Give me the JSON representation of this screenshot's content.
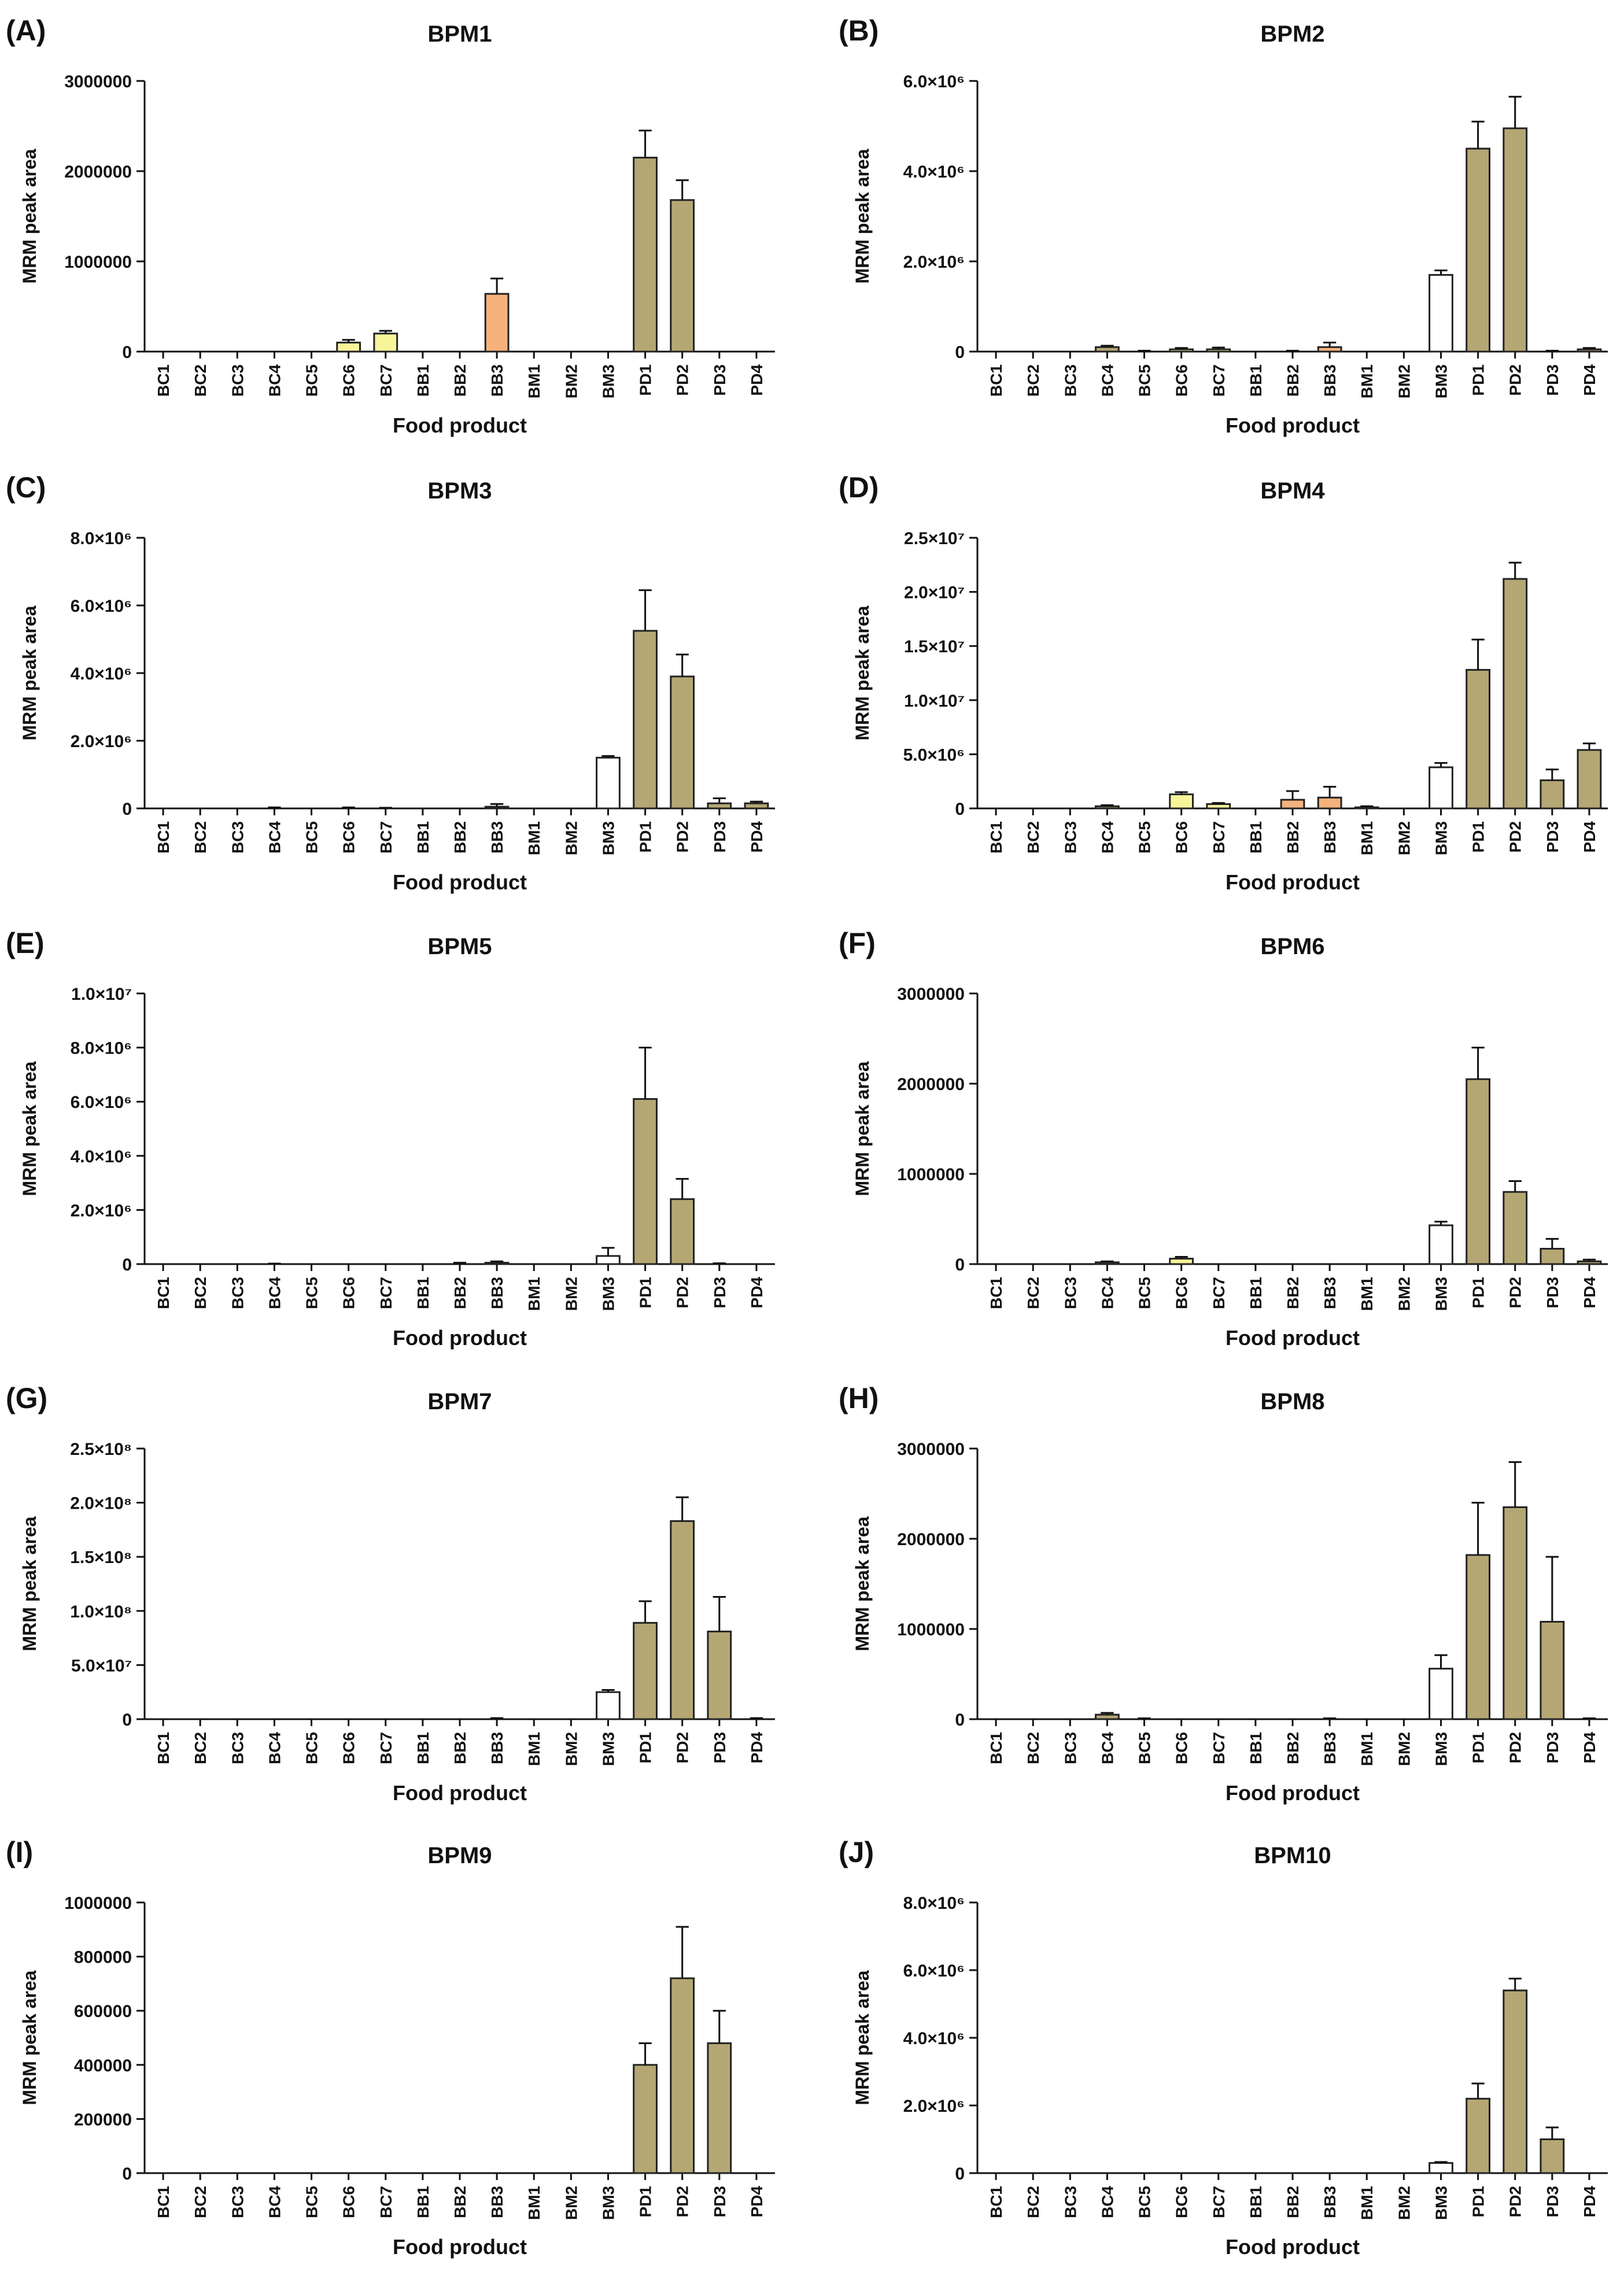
{
  "figure": {
    "colors": {
      "BC6_BC7": "#f7f49a",
      "BB": "#f5b27c",
      "BM3": "#ffffff",
      "default": "#b5a774",
      "stroke": "#222222"
    },
    "xlabel": "Food product",
    "ylabel": "MRM peak area"
  },
  "chart_data": [
    {
      "panel": "(A)",
      "title": "BPM1",
      "type": "bar",
      "xlabel": "Food product",
      "ylabel": "MRM peak area",
      "ylim": [
        0,
        3000000
      ],
      "yticks": [
        0,
        1000000,
        2000000,
        3000000
      ],
      "ytick_labels": [
        "0",
        "1000000",
        "2000000",
        "3000000"
      ],
      "categories": [
        "BC1",
        "BC2",
        "BC3",
        "BC4",
        "BC5",
        "BC6",
        "BC7",
        "BB1",
        "BB2",
        "BB3",
        "BM1",
        "BM2",
        "BM3",
        "PD1",
        "PD2",
        "PD3",
        "PD4"
      ],
      "values": [
        0,
        0,
        0,
        0,
        0,
        100000,
        200000,
        0,
        0,
        640000,
        0,
        0,
        0,
        2150000,
        1680000,
        0,
        0
      ],
      "errors": [
        0,
        0,
        0,
        0,
        0,
        30000,
        30000,
        0,
        0,
        170000,
        0,
        0,
        0,
        300000,
        220000,
        0,
        0
      ]
    },
    {
      "panel": "(B)",
      "title": "BPM2",
      "type": "bar",
      "xlabel": "Food product",
      "ylabel": "MRM peak area",
      "ylim": [
        0,
        6000000
      ],
      "yticks": [
        0,
        2000000,
        4000000,
        6000000
      ],
      "ytick_labels": [
        "0",
        "2.0×10⁶",
        "4.0×10⁶",
        "6.0×10⁶"
      ],
      "categories": [
        "BC1",
        "BC2",
        "BC3",
        "BC4",
        "BC5",
        "BC6",
        "BC7",
        "BB1",
        "BB2",
        "BB3",
        "BM1",
        "BM2",
        "BM3",
        "PD1",
        "PD2",
        "PD3",
        "PD4"
      ],
      "values": [
        0,
        0,
        0,
        100000,
        0,
        50000,
        50000,
        0,
        0,
        100000,
        0,
        0,
        1700000,
        4500000,
        4950000,
        0,
        50000
      ],
      "errors": [
        0,
        0,
        0,
        30000,
        20000,
        30000,
        40000,
        0,
        20000,
        100000,
        0,
        0,
        100000,
        600000,
        700000,
        20000,
        30000
      ]
    },
    {
      "panel": "(C)",
      "title": "BPM3",
      "type": "bar",
      "xlabel": "Food product",
      "ylabel": "MRM peak area",
      "ylim": [
        0,
        8000000
      ],
      "yticks": [
        0,
        2000000,
        4000000,
        6000000,
        8000000
      ],
      "ytick_labels": [
        "0",
        "2.0×10⁶",
        "4.0×10⁶",
        "6.0×10⁶",
        "8.0×10⁶"
      ],
      "categories": [
        "BC1",
        "BC2",
        "BC3",
        "BC4",
        "BC5",
        "BC6",
        "BC7",
        "BB1",
        "BB2",
        "BB3",
        "BM1",
        "BM2",
        "BM3",
        "PD1",
        "PD2",
        "PD3",
        "PD4"
      ],
      "values": [
        0,
        0,
        0,
        0,
        0,
        0,
        0,
        0,
        0,
        50000,
        0,
        0,
        1500000,
        5250000,
        3900000,
        150000,
        150000
      ],
      "errors": [
        0,
        0,
        0,
        30000,
        0,
        30000,
        20000,
        0,
        0,
        80000,
        0,
        0,
        50000,
        1200000,
        650000,
        150000,
        50000
      ]
    },
    {
      "panel": "(D)",
      "title": "BPM4",
      "type": "bar",
      "xlabel": "Food product",
      "ylabel": "MRM peak area",
      "ylim": [
        0,
        25000000
      ],
      "yticks": [
        0,
        5000000,
        10000000,
        15000000,
        20000000,
        25000000
      ],
      "ytick_labels": [
        "0",
        "5.0×10⁶",
        "1.0×10⁷",
        "1.5×10⁷",
        "2.0×10⁷",
        "2.5×10⁷"
      ],
      "categories": [
        "BC1",
        "BC2",
        "BC3",
        "BC4",
        "BC5",
        "BC6",
        "BC7",
        "BB1",
        "BB2",
        "BB3",
        "BM1",
        "BM2",
        "BM3",
        "PD1",
        "PD2",
        "PD3",
        "PD4"
      ],
      "values": [
        0,
        0,
        0,
        200000,
        0,
        1300000,
        400000,
        0,
        800000,
        1000000,
        100000,
        0,
        3800000,
        12800000,
        21200000,
        2600000,
        5400000
      ],
      "errors": [
        0,
        0,
        0,
        100000,
        0,
        200000,
        100000,
        0,
        800000,
        1000000,
        100000,
        0,
        400000,
        2800000,
        1500000,
        1000000,
        600000
      ]
    },
    {
      "panel": "(E)",
      "title": "BPM5",
      "type": "bar",
      "xlabel": "Food product",
      "ylabel": "MRM peak area",
      "ylim": [
        0,
        10000000
      ],
      "yticks": [
        0,
        2000000,
        4000000,
        6000000,
        8000000,
        10000000
      ],
      "ytick_labels": [
        "0",
        "2.0×10⁶",
        "4.0×10⁶",
        "6.0×10⁶",
        "8.0×10⁶",
        "1.0×10⁷"
      ],
      "categories": [
        "BC1",
        "BC2",
        "BC3",
        "BC4",
        "BC5",
        "BC6",
        "BC7",
        "BB1",
        "BB2",
        "BB3",
        "BM1",
        "BM2",
        "BM3",
        "PD1",
        "PD2",
        "PD3",
        "PD4"
      ],
      "values": [
        0,
        0,
        0,
        0,
        0,
        0,
        0,
        0,
        0,
        50000,
        0,
        0,
        300000,
        6100000,
        2400000,
        0,
        0
      ],
      "errors": [
        0,
        0,
        0,
        20000,
        0,
        0,
        0,
        0,
        50000,
        50000,
        0,
        0,
        300000,
        1900000,
        750000,
        30000,
        0
      ]
    },
    {
      "panel": "(F)",
      "title": "BPM6",
      "type": "bar",
      "xlabel": "Food product",
      "ylabel": "MRM peak area",
      "ylim": [
        0,
        3000000
      ],
      "yticks": [
        0,
        1000000,
        2000000,
        3000000
      ],
      "ytick_labels": [
        "0",
        "1000000",
        "2000000",
        "3000000"
      ],
      "categories": [
        "BC1",
        "BC2",
        "BC3",
        "BC4",
        "BC5",
        "BC6",
        "BC7",
        "BB1",
        "BB2",
        "BB3",
        "BM1",
        "BM2",
        "BM3",
        "PD1",
        "PD2",
        "PD3",
        "PD4"
      ],
      "values": [
        0,
        0,
        0,
        20000,
        0,
        60000,
        0,
        0,
        0,
        0,
        0,
        0,
        430000,
        2050000,
        800000,
        170000,
        30000
      ],
      "errors": [
        0,
        0,
        0,
        10000,
        0,
        20000,
        0,
        0,
        0,
        0,
        0,
        0,
        40000,
        350000,
        120000,
        110000,
        20000
      ]
    },
    {
      "panel": "(G)",
      "title": "BPM7",
      "type": "bar",
      "xlabel": "Food product",
      "ylabel": "MRM peak area",
      "ylim": [
        0,
        250000000
      ],
      "yticks": [
        0,
        50000000,
        100000000,
        150000000,
        200000000,
        250000000
      ],
      "ytick_labels": [
        "0",
        "5.0×10⁷",
        "1.0×10⁸",
        "1.5×10⁸",
        "2.0×10⁸",
        "2.5×10⁸"
      ],
      "categories": [
        "BC1",
        "BC2",
        "BC3",
        "BC4",
        "BC5",
        "BC6",
        "BC7",
        "BB1",
        "BB2",
        "BB3",
        "BM1",
        "BM2",
        "BM3",
        "PD1",
        "PD2",
        "PD3",
        "PD4"
      ],
      "values": [
        0,
        0,
        0,
        0,
        0,
        0,
        0,
        0,
        0,
        0,
        0,
        0,
        25000000,
        89000000,
        183000000,
        81000000,
        0
      ],
      "errors": [
        0,
        0,
        0,
        0,
        0,
        0,
        0,
        0,
        0,
        1000000,
        0,
        0,
        2000000,
        20000000,
        22000000,
        32000000,
        1000000
      ]
    },
    {
      "panel": "(H)",
      "title": "BPM8",
      "type": "bar",
      "xlabel": "Food product",
      "ylabel": "MRM peak area",
      "ylim": [
        0,
        3000000
      ],
      "yticks": [
        0,
        1000000,
        2000000,
        3000000
      ],
      "ytick_labels": [
        "0",
        "1000000",
        "2000000",
        "3000000"
      ],
      "categories": [
        "BC1",
        "BC2",
        "BC3",
        "BC4",
        "BC5",
        "BC6",
        "BC7",
        "BB1",
        "BB2",
        "BB3",
        "BM1",
        "BM2",
        "BM3",
        "PD1",
        "PD2",
        "PD3",
        "PD4"
      ],
      "values": [
        0,
        0,
        0,
        50000,
        0,
        0,
        0,
        0,
        0,
        0,
        0,
        0,
        560000,
        1820000,
        2350000,
        1080000,
        0
      ],
      "errors": [
        0,
        0,
        0,
        20000,
        10000,
        0,
        0,
        0,
        0,
        10000,
        0,
        0,
        150000,
        580000,
        500000,
        720000,
        10000
      ]
    },
    {
      "panel": "(I)",
      "title": "BPM9",
      "type": "bar",
      "xlabel": "Food product",
      "ylabel": "MRM peak area",
      "ylim": [
        0,
        1000000
      ],
      "yticks": [
        0,
        200000,
        400000,
        600000,
        800000,
        1000000
      ],
      "ytick_labels": [
        "0",
        "200000",
        "400000",
        "600000",
        "800000",
        "1000000"
      ],
      "categories": [
        "BC1",
        "BC2",
        "BC3",
        "BC4",
        "BC5",
        "BC6",
        "BC7",
        "BB1",
        "BB2",
        "BB3",
        "BM1",
        "BM2",
        "BM3",
        "PD1",
        "PD2",
        "PD3",
        "PD4"
      ],
      "values": [
        0,
        0,
        0,
        0,
        0,
        0,
        0,
        0,
        0,
        0,
        0,
        0,
        0,
        400000,
        720000,
        480000,
        0
      ],
      "errors": [
        0,
        0,
        0,
        0,
        0,
        0,
        0,
        0,
        0,
        0,
        0,
        0,
        0,
        80000,
        190000,
        120000,
        0
      ]
    },
    {
      "panel": "(J)",
      "title": "BPM10",
      "type": "bar",
      "xlabel": "Food product",
      "ylabel": "MRM peak area",
      "ylim": [
        0,
        8000000
      ],
      "yticks": [
        0,
        2000000,
        4000000,
        6000000,
        8000000
      ],
      "ytick_labels": [
        "0",
        "2.0×10⁶",
        "4.0×10⁶",
        "6.0×10⁶",
        "8.0×10⁶"
      ],
      "categories": [
        "BC1",
        "BC2",
        "BC3",
        "BC4",
        "BC5",
        "BC6",
        "BC7",
        "BB1",
        "BB2",
        "BB3",
        "BM1",
        "BM2",
        "BM3",
        "PD1",
        "PD2",
        "PD3",
        "PD4"
      ],
      "values": [
        0,
        0,
        0,
        0,
        0,
        0,
        0,
        0,
        0,
        0,
        0,
        0,
        300000,
        2200000,
        5400000,
        1000000,
        0
      ],
      "errors": [
        0,
        0,
        0,
        0,
        0,
        0,
        0,
        0,
        0,
        0,
        0,
        0,
        30000,
        450000,
        350000,
        350000,
        0
      ]
    }
  ]
}
